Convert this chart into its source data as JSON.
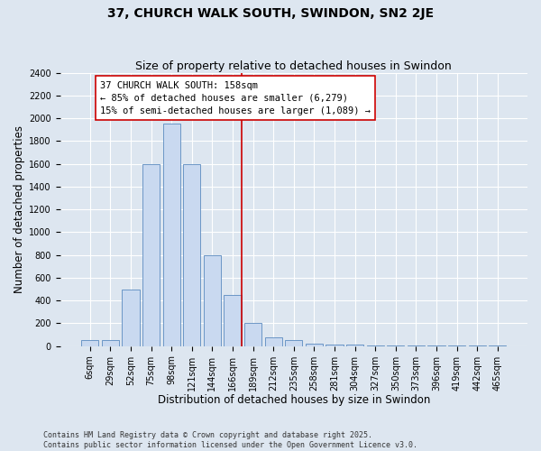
{
  "title": "37, CHURCH WALK SOUTH, SWINDON, SN2 2JE",
  "subtitle": "Size of property relative to detached houses in Swindon",
  "xlabel": "Distribution of detached houses by size in Swindon",
  "ylabel": "Number of detached properties",
  "categories": [
    "6sqm",
    "29sqm",
    "52sqm",
    "75sqm",
    "98sqm",
    "121sqm",
    "144sqm",
    "166sqm",
    "189sqm",
    "212sqm",
    "235sqm",
    "258sqm",
    "281sqm",
    "304sqm",
    "327sqm",
    "350sqm",
    "373sqm",
    "396sqm",
    "419sqm",
    "442sqm",
    "465sqm"
  ],
  "values": [
    50,
    50,
    500,
    1600,
    1950,
    1600,
    800,
    450,
    200,
    75,
    50,
    25,
    15,
    10,
    7,
    5,
    3,
    3,
    3,
    3,
    7
  ],
  "bar_color": "#c9d9f0",
  "bar_edge_color": "#5b8bbf",
  "vline_color": "#cc0000",
  "annotation_text": "37 CHURCH WALK SOUTH: 158sqm\n← 85% of detached houses are smaller (6,279)\n15% of semi-detached houses are larger (1,089) →",
  "annotation_box_color": "#ffffff",
  "annotation_box_edge": "#cc0000",
  "ylim": [
    0,
    2400
  ],
  "yticks": [
    0,
    200,
    400,
    600,
    800,
    1000,
    1200,
    1400,
    1600,
    1800,
    2000,
    2200,
    2400
  ],
  "bg_color": "#dde6f0",
  "grid_color": "#ffffff",
  "footer": "Contains HM Land Registry data © Crown copyright and database right 2025.\nContains public sector information licensed under the Open Government Licence v3.0.",
  "title_fontsize": 10,
  "subtitle_fontsize": 9,
  "axis_label_fontsize": 8.5,
  "tick_fontsize": 7,
  "annotation_fontsize": 7.5,
  "footer_fontsize": 6
}
